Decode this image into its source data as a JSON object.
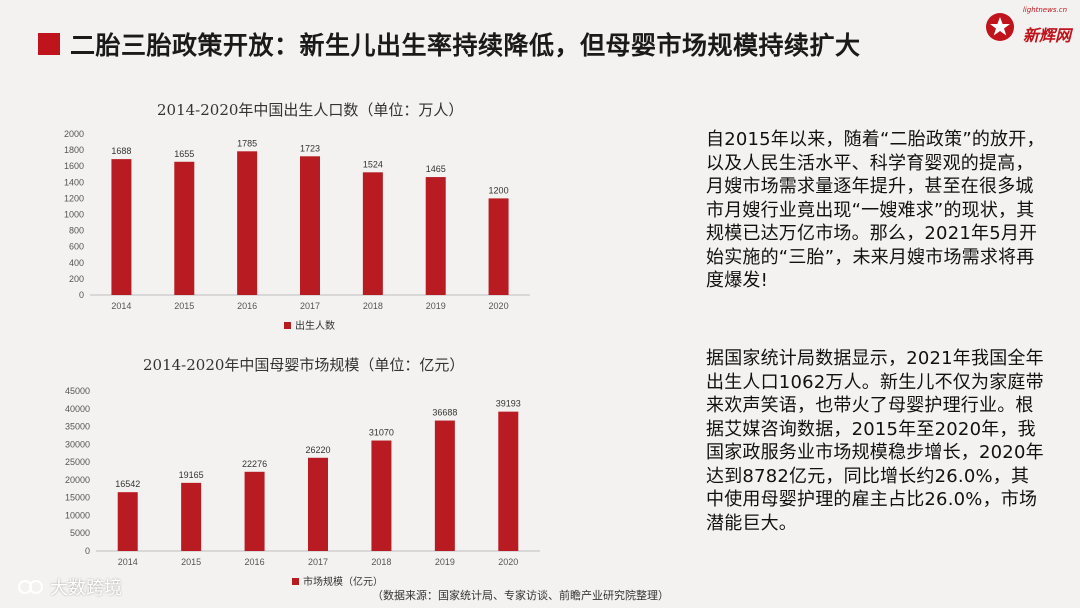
{
  "header": {
    "title": "二胎三胎政策开放：新生儿出生率持续降低，但母婴市场规模持续扩大"
  },
  "logo": {
    "url": "lightnews.cn",
    "name": "新辉网"
  },
  "chart_data": [
    {
      "type": "bar",
      "title": "2014-2020年中国出生人口数（单位：万人）",
      "categories": [
        "2014",
        "2015",
        "2016",
        "2017",
        "2018",
        "2019",
        "2020"
      ],
      "series": [
        {
          "name": "出生人数",
          "values": [
            1688,
            1655,
            1785,
            1723,
            1524,
            1465,
            1200
          ]
        }
      ],
      "ylim": [
        0,
        2000
      ],
      "yticks": [
        0,
        200,
        400,
        600,
        800,
        1000,
        1200,
        1400,
        1600,
        1800,
        2000
      ],
      "color": "#b81c22",
      "grid": false,
      "legend": "bottom"
    },
    {
      "type": "bar",
      "title": "2014-2020年中国母婴市场规模（单位：亿元）",
      "categories": [
        "2014",
        "2015",
        "2016",
        "2017",
        "2018",
        "2019",
        "2020"
      ],
      "series": [
        {
          "name": "市场规模（亿元）",
          "values": [
            16542,
            19165,
            22276,
            26220,
            31070,
            36688,
            39193
          ]
        }
      ],
      "ylim": [
        0,
        45000
      ],
      "yticks": [
        0,
        5000,
        10000,
        15000,
        20000,
        25000,
        30000,
        35000,
        40000,
        45000
      ],
      "color": "#b81c22",
      "grid": false,
      "legend": "bottom"
    }
  ],
  "paragraphs": [
    "自2015年以来，随着“二胎政策”的放开，以及人民生活水平、科学育婴观的提高，月嫂市场需求量逐年提升，甚至在很多城市月嫂行业竟出现“一嫂难求”的现状，其规模已达万亿市场。那么，2021年5月开始实施的“三胎”，未来月嫂市场需求将再度爆发!",
    "据国家统计局数据显示，2021年我国全年出生人口1062万人。新生儿不仅为家庭带来欢声笑语，也带火了母婴护理行业。根据艾媒咨询数据，2015年至2020年，我国家政服务业市场规模稳步增长，2020年达到8782亿元，同比增长约26.0%，其中使用母婴护理的雇主占比26.0%，市场潜能巨大。"
  ],
  "source": "（数据来源：国家统计局、专家访谈、前瞻产业研究院整理）",
  "watermark": "大数跨境",
  "colors": {
    "accent": "#c0141c",
    "bar": "#b81c22"
  }
}
